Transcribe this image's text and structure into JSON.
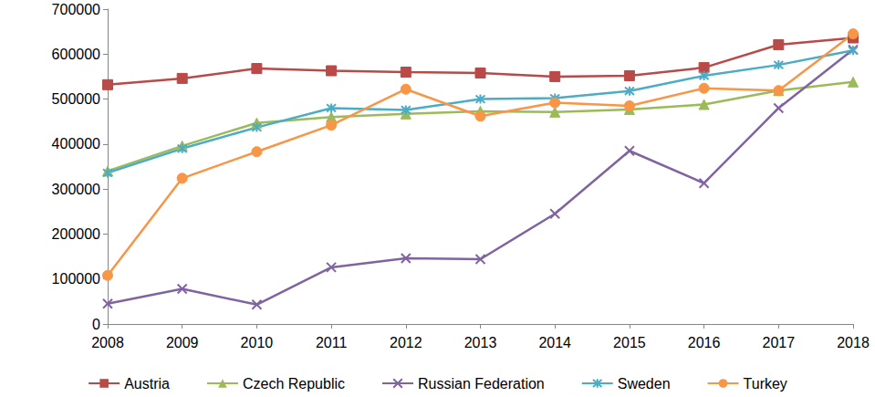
{
  "chart_data": {
    "type": "line",
    "categories": [
      "2008",
      "2009",
      "2010",
      "2011",
      "2012",
      "2013",
      "2014",
      "2015",
      "2016",
      "2017",
      "2018"
    ],
    "series": [
      {
        "name": "Austria",
        "color": "#b94a48",
        "marker": "square",
        "values": [
          532000,
          546000,
          568000,
          563000,
          560000,
          558000,
          550000,
          552000,
          570000,
          621000,
          636000
        ]
      },
      {
        "name": "Czech Republic",
        "color": "#9bbb59",
        "marker": "triangle",
        "values": [
          340000,
          396000,
          447000,
          460000,
          467000,
          473000,
          471000,
          477000,
          488000,
          519000,
          538000
        ]
      },
      {
        "name": "Russian Federation",
        "color": "#8064a2",
        "marker": "x",
        "values": [
          45000,
          78000,
          43000,
          126000,
          146000,
          144000,
          245000,
          385000,
          313000,
          480000,
          610000
        ]
      },
      {
        "name": "Sweden",
        "color": "#4bacc6",
        "marker": "asterisk",
        "values": [
          336000,
          390000,
          437000,
          480000,
          476000,
          500000,
          502000,
          518000,
          552000,
          576000,
          608000
        ]
      },
      {
        "name": "Turkey",
        "color": "#f79646",
        "marker": "circle",
        "values": [
          108000,
          324000,
          383000,
          442000,
          522000,
          462000,
          492000,
          485000,
          524000,
          519000,
          645000
        ]
      }
    ],
    "ylim": [
      0,
      700000
    ],
    "yticks": [
      0,
      100000,
      200000,
      300000,
      400000,
      500000,
      600000,
      700000
    ],
    "grid": false,
    "legend": "bottom"
  }
}
